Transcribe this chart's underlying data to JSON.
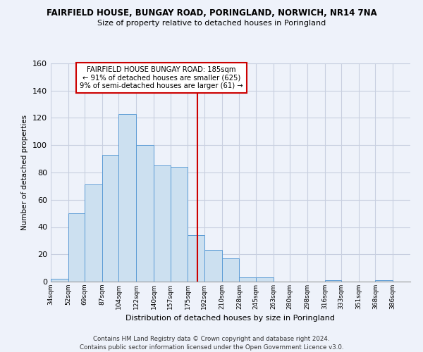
{
  "title": "FAIRFIELD HOUSE, BUNGAY ROAD, PORINGLAND, NORWICH, NR14 7NA",
  "subtitle": "Size of property relative to detached houses in Poringland",
  "xlabel": "Distribution of detached houses by size in Poringland",
  "ylabel": "Number of detached properties",
  "bar_edges": [
    34,
    52,
    69,
    87,
    104,
    122,
    140,
    157,
    175,
    192,
    210,
    228,
    245,
    263,
    280,
    298,
    316,
    333,
    351,
    368,
    386
  ],
  "bar_heights": [
    2,
    50,
    71,
    93,
    123,
    100,
    85,
    84,
    34,
    23,
    17,
    3,
    3,
    0,
    0,
    0,
    1,
    0,
    0,
    1,
    0
  ],
  "bar_color": "#cce0f0",
  "bar_edge_color": "#5b9bd5",
  "reference_line_x": 185,
  "reference_line_color": "#cc0000",
  "annotation_text": "FAIRFIELD HOUSE BUNGAY ROAD: 185sqm\n← 91% of detached houses are smaller (625)\n9% of semi-detached houses are larger (61) →",
  "annotation_box_color": "#ffffff",
  "annotation_box_edge_color": "#cc0000",
  "ylim": [
    0,
    160
  ],
  "yticks": [
    0,
    20,
    40,
    60,
    80,
    100,
    120,
    140,
    160
  ],
  "tick_labels": [
    "34sqm",
    "52sqm",
    "69sqm",
    "87sqm",
    "104sqm",
    "122sqm",
    "140sqm",
    "157sqm",
    "175sqm",
    "192sqm",
    "210sqm",
    "228sqm",
    "245sqm",
    "263sqm",
    "280sqm",
    "298sqm",
    "316sqm",
    "333sqm",
    "351sqm",
    "368sqm",
    "386sqm"
  ],
  "footer_line1": "Contains HM Land Registry data © Crown copyright and database right 2024.",
  "footer_line2": "Contains public sector information licensed under the Open Government Licence v3.0.",
  "background_color": "#eef2fa",
  "plot_background_color": "#eef2fa",
  "grid_color": "#c8cfe0"
}
